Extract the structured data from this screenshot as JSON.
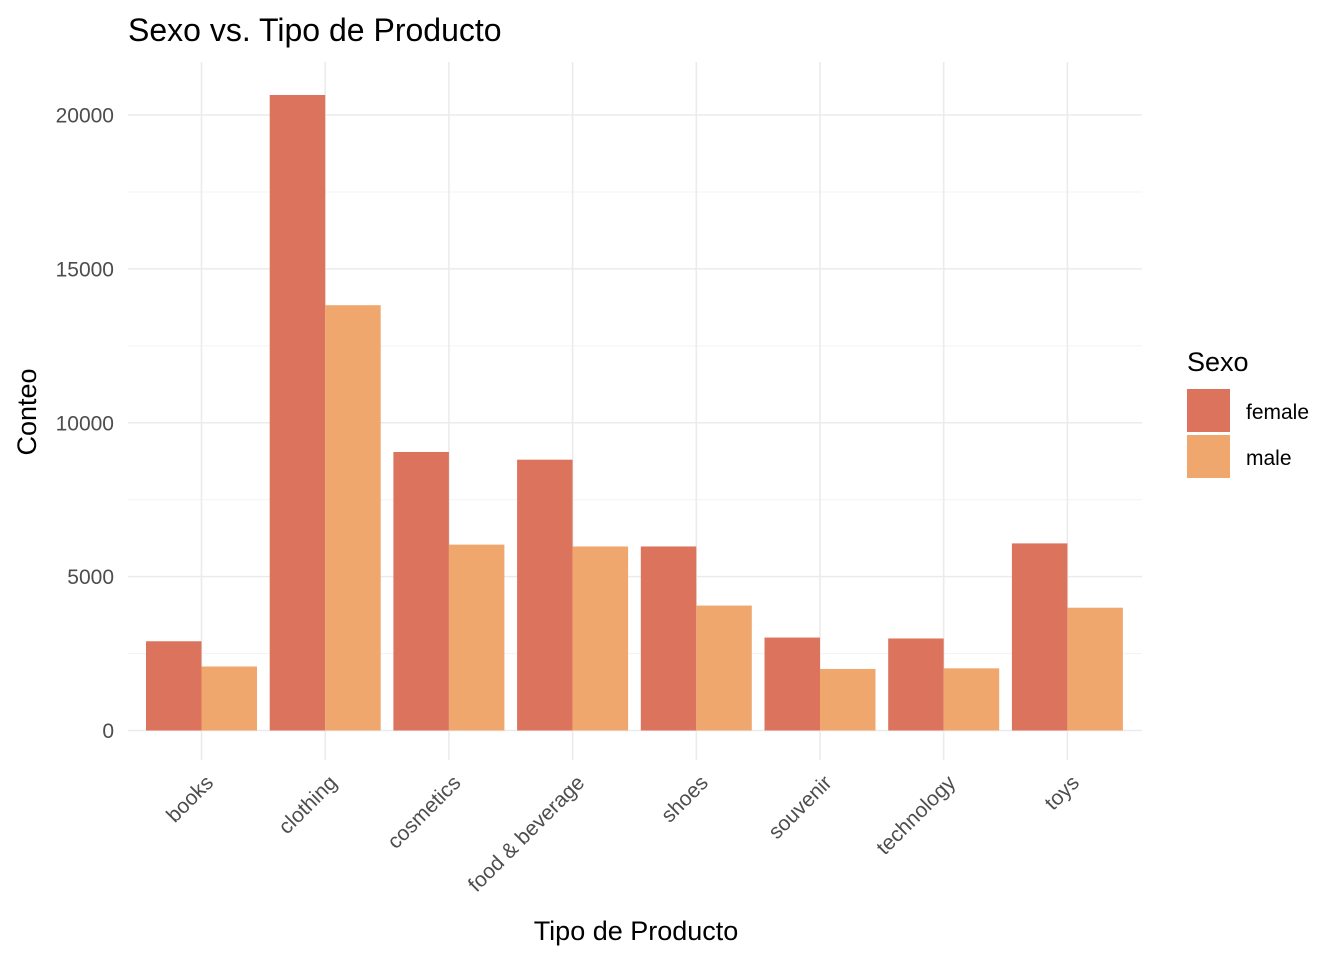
{
  "chart_data": {
    "type": "bar",
    "title": "Sexo vs. Tipo de Producto",
    "xlabel": "Tipo de Producto",
    "ylabel": "Conteo",
    "categories": [
      "books",
      "clothing",
      "cosmetics",
      "food & beverage",
      "shoes",
      "souvenir",
      "technology",
      "toys"
    ],
    "series": [
      {
        "name": "female",
        "color": "#DC735D",
        "values": [
          2900,
          20650,
          9050,
          8800,
          5980,
          3020,
          2990,
          6080
        ]
      },
      {
        "name": "male",
        "color": "#F0A76E",
        "values": [
          2080,
          13820,
          6040,
          5980,
          4060,
          2000,
          2020,
          3990
        ]
      }
    ],
    "ylim": [
      0,
      21700
    ],
    "yticks": [
      0,
      5000,
      10000,
      15000,
      20000
    ],
    "ytick_labels": [
      "0",
      "5000",
      "10000",
      "15000",
      "20000"
    ],
    "legend": {
      "title": "Sexo",
      "placement": "right"
    },
    "grid": true
  }
}
